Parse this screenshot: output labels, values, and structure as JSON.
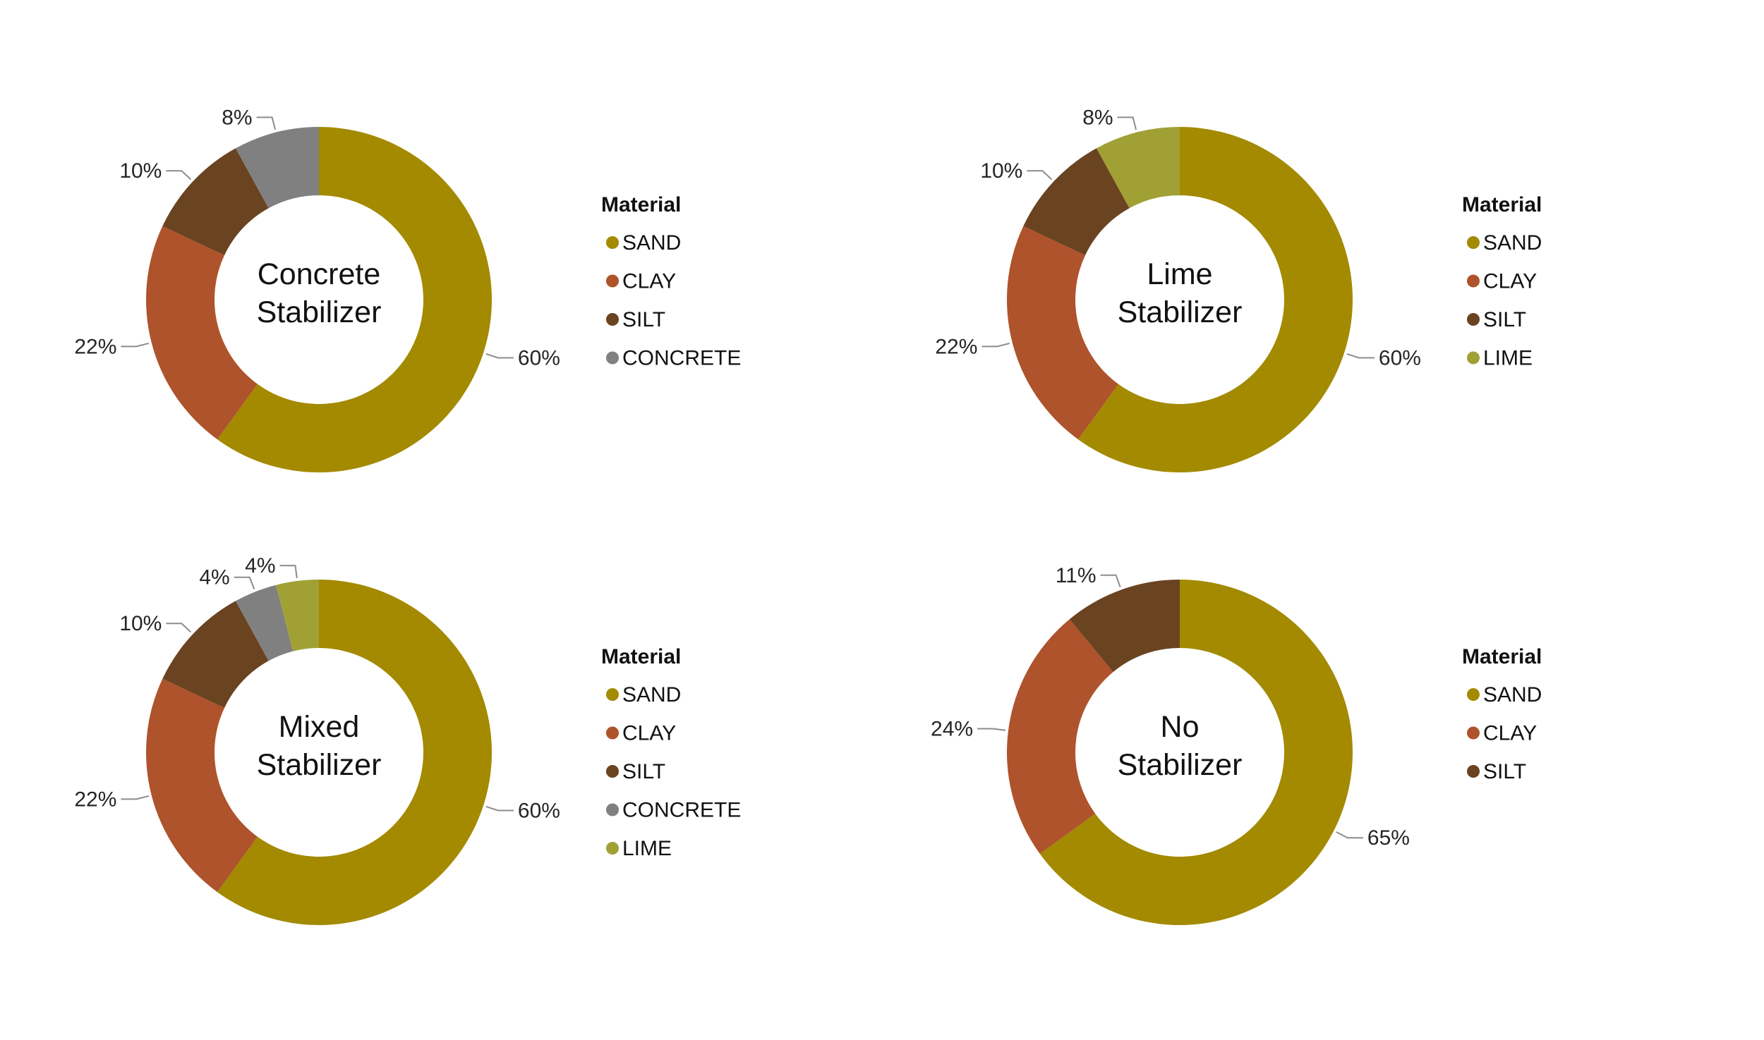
{
  "colors": {
    "SAND": "#a38a00",
    "CLAY": "#ae532b",
    "SILT": "#6a4321",
    "CONCRETE": "#808080",
    "LIME": "#a1a035"
  },
  "chart_data": [
    {
      "type": "pie",
      "variant": "donut",
      "center_label": [
        "Concrete",
        "Stabilizer"
      ],
      "legend": {
        "title": "Material",
        "placement": "right"
      },
      "slices": [
        {
          "label": "SAND",
          "value": 60,
          "display": "60%"
        },
        {
          "label": "CLAY",
          "value": 22,
          "display": "22%"
        },
        {
          "label": "SILT",
          "value": 10,
          "display": "10%"
        },
        {
          "label": "CONCRETE",
          "value": 8,
          "display": "8%"
        }
      ]
    },
    {
      "type": "pie",
      "variant": "donut",
      "center_label": [
        "Lime",
        "Stabilizer"
      ],
      "legend": {
        "title": "Material",
        "placement": "right"
      },
      "slices": [
        {
          "label": "SAND",
          "value": 60,
          "display": "60%"
        },
        {
          "label": "CLAY",
          "value": 22,
          "display": "22%"
        },
        {
          "label": "SILT",
          "value": 10,
          "display": "10%"
        },
        {
          "label": "LIME",
          "value": 8,
          "display": "8%"
        }
      ]
    },
    {
      "type": "pie",
      "variant": "donut",
      "center_label": [
        "Mixed",
        "Stabilizer"
      ],
      "legend": {
        "title": "Material",
        "placement": "right"
      },
      "slices": [
        {
          "label": "SAND",
          "value": 60,
          "display": "60%"
        },
        {
          "label": "CLAY",
          "value": 22,
          "display": "22%"
        },
        {
          "label": "SILT",
          "value": 10,
          "display": "10%"
        },
        {
          "label": "CONCRETE",
          "value": 4,
          "display": "4%"
        },
        {
          "label": "LIME",
          "value": 4,
          "display": "4%"
        }
      ]
    },
    {
      "type": "pie",
      "variant": "donut",
      "center_label": [
        "No",
        "Stabilizer"
      ],
      "legend": {
        "title": "Material",
        "placement": "right"
      },
      "slices": [
        {
          "label": "SAND",
          "value": 65,
          "display": "65%"
        },
        {
          "label": "CLAY",
          "value": 24,
          "display": "24%"
        },
        {
          "label": "SILT",
          "value": 11,
          "display": "11%"
        }
      ]
    }
  ]
}
